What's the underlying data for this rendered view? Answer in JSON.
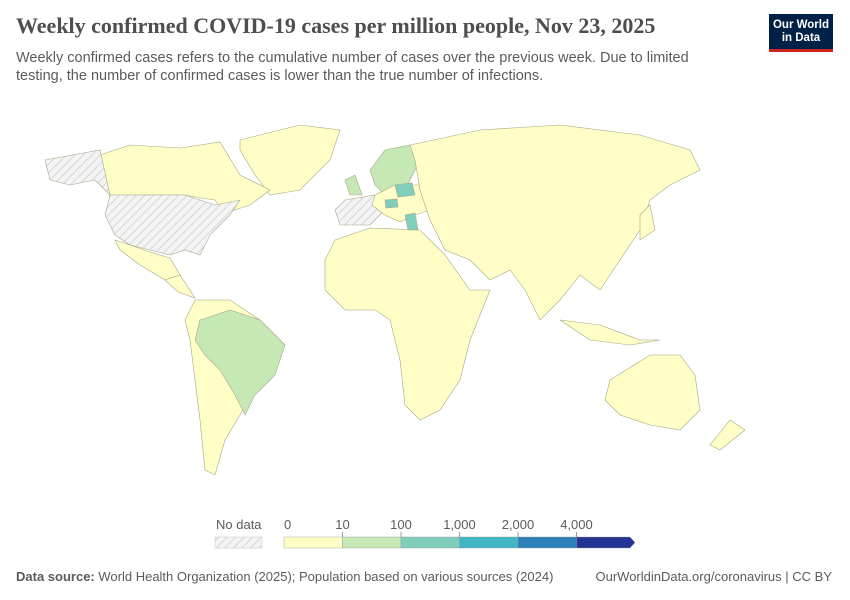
{
  "header": {
    "title": "Weekly confirmed COVID-19 cases per million people, Nov 23, 2025",
    "subtitle": "Weekly confirmed cases refers to the cumulative number of cases over the previous week. Due to limited testing, the number of confirmed cases is lower than the true number of infections.",
    "logo": "Our World in Data"
  },
  "chart_data": {
    "type": "choropleth",
    "title": "Weekly confirmed COVID-19 cases per million people, Nov 23, 2025",
    "legend": {
      "no_data_label": "No data",
      "ticks": [
        "0",
        "10",
        "100",
        "1,000",
        "2,000",
        "4,000"
      ],
      "bins": [
        {
          "range": "0-10",
          "color": "#fefec6"
        },
        {
          "range": "10-100",
          "color": "#c6e8b4"
        },
        {
          "range": "100-1,000",
          "color": "#7fcdbb"
        },
        {
          "range": "1,000-2,000",
          "color": "#41b6c4"
        },
        {
          "range": "2,000-4,000",
          "color": "#2c7fb8"
        },
        {
          "range": ">4,000",
          "color": "#253494"
        }
      ],
      "placement": "bottom-center"
    },
    "regions": [
      {
        "name": "Greenland",
        "bin": "0-10"
      },
      {
        "name": "Canada",
        "bin": "0-10"
      },
      {
        "name": "Alaska",
        "bin": "no-data"
      },
      {
        "name": "United States",
        "bin": "no-data"
      },
      {
        "name": "Mexico",
        "bin": "0-10"
      },
      {
        "name": "Central America",
        "bin": "0-10"
      },
      {
        "name": "South America",
        "bin": "0-10"
      },
      {
        "name": "Brazil",
        "bin": "10-100"
      },
      {
        "name": "Africa",
        "bin": "0-10"
      },
      {
        "name": "Scandinavia",
        "bin": "10-100"
      },
      {
        "name": "United Kingdom",
        "bin": "10-100"
      },
      {
        "name": "France and Spain",
        "bin": "no-data"
      },
      {
        "name": "Europe (other)",
        "bin": "0-10"
      },
      {
        "name": "Poland",
        "bin": "100-1,000"
      },
      {
        "name": "Czechia",
        "bin": "100-1,000"
      },
      {
        "name": "Greece",
        "bin": "100-1,000"
      },
      {
        "name": "Russia and Asia",
        "bin": "0-10"
      },
      {
        "name": "Japan",
        "bin": "0-10"
      },
      {
        "name": "Indonesia",
        "bin": "0-10"
      },
      {
        "name": "Australia",
        "bin": "0-10"
      },
      {
        "name": "New Zealand",
        "bin": "0-10"
      }
    ]
  },
  "footer": {
    "source_label": "Data source:",
    "source_text": "World Health Organization (2025); Population based on various sources (2024)",
    "link": "OurWorldinData.org/coronavirus | CC BY"
  }
}
